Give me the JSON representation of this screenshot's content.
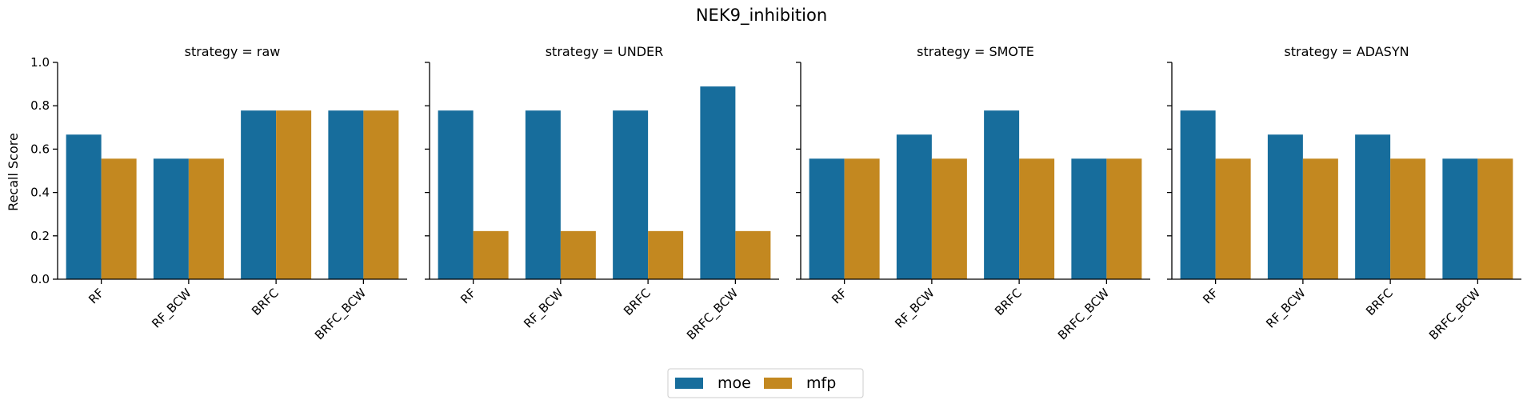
{
  "chart_data": {
    "type": "bar",
    "title": "NEK9_inhibition",
    "ylabel": "Recall Score",
    "ylim": [
      0,
      1.0
    ],
    "yticks": [
      "0.0",
      "0.2",
      "0.4",
      "0.6",
      "0.8",
      "1.0"
    ],
    "grid": false,
    "legend_position": "bottom-center",
    "categories": [
      "RF",
      "RF_BCW",
      "BRFC",
      "BRFC_BCW"
    ],
    "colors": {
      "moe": "#176d9c",
      "mfp": "#c38820"
    },
    "facets": [
      {
        "title": "strategy = raw",
        "series": [
          {
            "name": "moe",
            "values": [
              0.667,
              0.556,
              0.778,
              0.778
            ]
          },
          {
            "name": "mfp",
            "values": [
              0.556,
              0.556,
              0.778,
              0.778
            ]
          }
        ]
      },
      {
        "title": "strategy = UNDER",
        "series": [
          {
            "name": "moe",
            "values": [
              0.778,
              0.778,
              0.778,
              0.889
            ]
          },
          {
            "name": "mfp",
            "values": [
              0.222,
              0.222,
              0.222,
              0.222
            ]
          }
        ]
      },
      {
        "title": "strategy = SMOTE",
        "series": [
          {
            "name": "moe",
            "values": [
              0.556,
              0.667,
              0.778,
              0.556
            ]
          },
          {
            "name": "mfp",
            "values": [
              0.556,
              0.556,
              0.556,
              0.556
            ]
          }
        ]
      },
      {
        "title": "strategy = ADASYN",
        "series": [
          {
            "name": "moe",
            "values": [
              0.778,
              0.667,
              0.667,
              0.556
            ]
          },
          {
            "name": "mfp",
            "values": [
              0.556,
              0.556,
              0.556,
              0.556
            ]
          }
        ]
      }
    ],
    "legend": [
      "moe",
      "mfp"
    ]
  }
}
